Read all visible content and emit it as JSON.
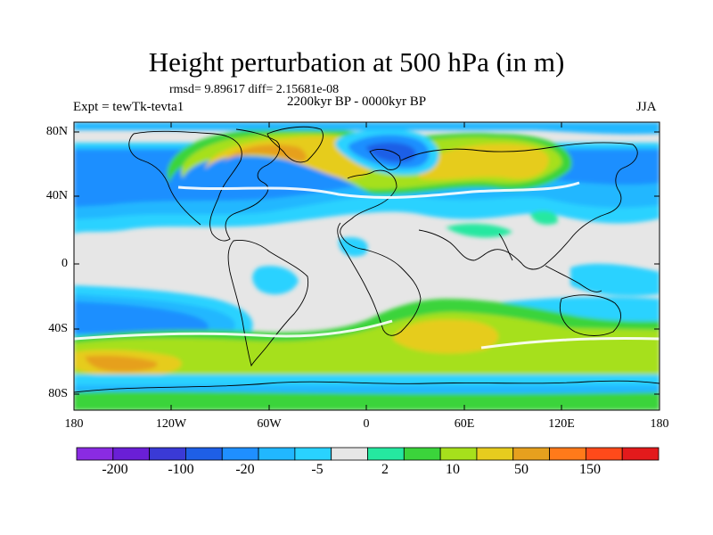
{
  "title": "Height perturbation at 500 hPa (in m)",
  "stats": "rmsd= 9.89617 diff= 2.15681e-08",
  "period": "2200kyr BP - 0000kyr BP",
  "experiment": "Expt = tewTk-tevta1",
  "season": "JJA",
  "map": {
    "lat_labels": [
      "80N",
      "40N",
      "0",
      "40S",
      "80S"
    ],
    "lon_labels": [
      "180",
      "120W",
      "60W",
      "0",
      "60E",
      "120E",
      "180"
    ]
  },
  "colorbar": {
    "labels": [
      "-200",
      "-100",
      "-20",
      "-5",
      "2",
      "10",
      "50",
      "150"
    ],
    "colors": [
      "#8a2be2",
      "#6a1fd6",
      "#3a3ad6",
      "#1e5fe6",
      "#1f8fff",
      "#21b7ff",
      "#29d2ff",
      "#e6e6e6",
      "#25e8a0",
      "#3bd43b",
      "#a6e01c",
      "#e6cc1e",
      "#e6a01e",
      "#ff7a1a",
      "#ff4a1a",
      "#e31a1c"
    ]
  }
}
